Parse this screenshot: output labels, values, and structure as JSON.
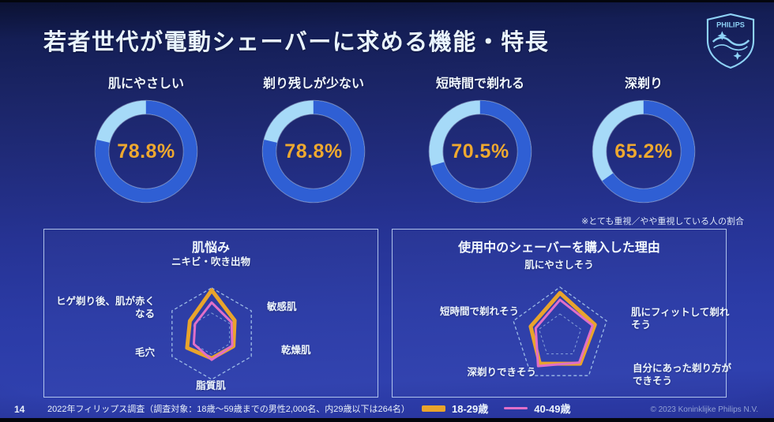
{
  "slide": {
    "title": "若者世代が電動シェーバーに求める機能・特長",
    "logo_text": "PHILIPS",
    "page_number": "14",
    "source": "2022年フィリップス調査（調査対象：18歳～59歳までの男性2,000名、内29歳以下は264名）",
    "copyright": "© 2023 Koninklijke Philips N.V.",
    "note": "※とても重視／やや重視している人の割合"
  },
  "colors": {
    "donut_value": "#2f5fd4",
    "donut_rest": "#a6daf8",
    "percent_text": "#efa92f",
    "series_18_29": "#e9a42b",
    "series_40_49": "#e06fc8",
    "grid": "#a9c9ec",
    "logo": "#8ed2f6"
  },
  "legend": {
    "items": [
      {
        "label": "18-29歳",
        "color": "#e9a42b",
        "style": "thick"
      },
      {
        "label": "40-49歳",
        "color": "#e06fc8",
        "style": "thin"
      }
    ]
  },
  "chart_data": [
    {
      "type": "donut",
      "title": "肌にやさしい",
      "value": 78.8,
      "display": "78.8%",
      "unit": "%",
      "start": "top",
      "direction": "clockwise"
    },
    {
      "type": "donut",
      "title": "剃り残しが少ない",
      "value": 78.8,
      "display": "78.8%",
      "unit": "%",
      "start": "top",
      "direction": "clockwise"
    },
    {
      "type": "donut",
      "title": "短時間で剃れる",
      "value": 70.5,
      "display": "70.5%",
      "unit": "%",
      "start": "top",
      "direction": "clockwise"
    },
    {
      "type": "donut",
      "title": "深剃り",
      "value": 65.2,
      "display": "65.2%",
      "unit": "%",
      "start": "top",
      "direction": "clockwise"
    },
    {
      "type": "radar",
      "title": "肌悩み",
      "shape": "hexagon",
      "scale": [
        0,
        1
      ],
      "grid_inner": 0.45,
      "grid_style": "dashed",
      "categories": [
        "ニキビ・吹き出物",
        "敏感肌",
        "乾燥肌",
        "脂質肌",
        "毛穴",
        "ヒゲ剃り後、肌が赤くなる"
      ],
      "series": [
        {
          "name": "18-29歳",
          "color": "#e9a42b",
          "style": "thick",
          "values": [
            0.95,
            0.58,
            0.55,
            0.54,
            0.62,
            0.55
          ]
        },
        {
          "name": "40-49歳",
          "color": "#e06fc8",
          "style": "thin",
          "values": [
            0.68,
            0.5,
            0.52,
            0.57,
            0.45,
            0.42
          ]
        }
      ]
    },
    {
      "type": "radar",
      "title": "使用中のシェーバーを購入した理由",
      "shape": "pentagon",
      "scale": [
        0,
        1
      ],
      "grid_inner": 0.45,
      "grid_style": "dashed",
      "categories": [
        "肌にやさしそう",
        "肌にフィットして剃れそう",
        "自分にあった剃り方ができそう",
        "深剃りできそう",
        "短時間で剃れそう"
      ],
      "series": [
        {
          "name": "18-29歳",
          "color": "#e9a42b",
          "style": "thick",
          "values": [
            0.88,
            0.75,
            0.7,
            0.7,
            0.63
          ]
        },
        {
          "name": "40-49歳",
          "color": "#e06fc8",
          "style": "thin",
          "values": [
            0.74,
            0.7,
            0.67,
            0.76,
            0.52
          ]
        }
      ]
    }
  ]
}
